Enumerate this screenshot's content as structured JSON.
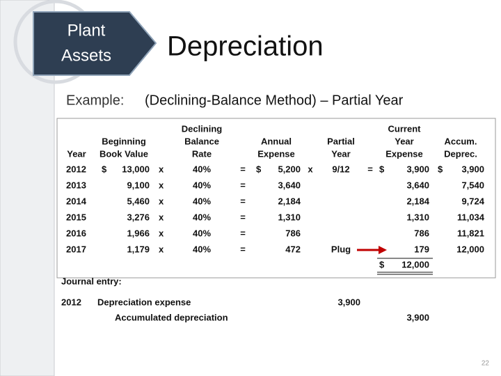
{
  "header": {
    "badge": [
      "Plant",
      "Assets"
    ],
    "title": "Depreciation",
    "subtitle_label": "Example:",
    "subtitle": "(Declining-Balance Method) – Partial Year"
  },
  "table": {
    "headers": [
      {
        "key": "year",
        "lines": [
          "Year"
        ]
      },
      {
        "key": "beginning",
        "lines": [
          "Beginning",
          "Book Value"
        ]
      },
      {
        "key": "rate",
        "lines": [
          "Declining",
          "Balance",
          "Rate"
        ]
      },
      {
        "key": "annual",
        "lines": [
          "Annual",
          "Expense"
        ]
      },
      {
        "key": "partial",
        "lines": [
          "Partial",
          "Year"
        ]
      },
      {
        "key": "current",
        "lines": [
          "Current",
          "Year",
          "Expense"
        ]
      },
      {
        "key": "accum",
        "lines": [
          "Accum.",
          "Deprec."
        ]
      }
    ],
    "rows": [
      {
        "year": "2012",
        "begin_dollar": "$",
        "beginning": "13,000",
        "times1": "x",
        "rate": "40%",
        "eq1": "=",
        "annual_dollar": "$",
        "annual": "5,200",
        "times2": "x",
        "partial": "9/12",
        "eq2": "=",
        "current_dollar": "$",
        "current": "3,900",
        "accum_dollar": "$",
        "accum": "3,900"
      },
      {
        "year": "2013",
        "beginning": "9,100",
        "times1": "x",
        "rate": "40%",
        "eq1": "=",
        "annual": "3,640",
        "current": "3,640",
        "accum": "7,540"
      },
      {
        "year": "2014",
        "beginning": "5,460",
        "times1": "x",
        "rate": "40%",
        "eq1": "=",
        "annual": "2,184",
        "current": "2,184",
        "accum": "9,724"
      },
      {
        "year": "2015",
        "beginning": "3,276",
        "times1": "x",
        "rate": "40%",
        "eq1": "=",
        "annual": "1,310",
        "current": "1,310",
        "accum": "11,034"
      },
      {
        "year": "2016",
        "beginning": "1,966",
        "times1": "x",
        "rate": "40%",
        "eq1": "=",
        "annual": "786",
        "current": "786",
        "accum": "11,821"
      },
      {
        "year": "2017",
        "beginning": "1,179",
        "times1": "x",
        "rate": "40%",
        "eq1": "=",
        "annual": "472",
        "partial": "Plug",
        "current": "179",
        "accum": "12,000"
      }
    ],
    "total": {
      "current_dollar": "$",
      "current": "12,000"
    }
  },
  "journal": {
    "label": "Journal entry:",
    "entries": [
      {
        "year": "2012",
        "account": "Depreciation expense",
        "debit": "3,900"
      },
      {
        "account": "Accumulated depreciation",
        "credit": "3,900"
      }
    ]
  },
  "page_number": "22"
}
